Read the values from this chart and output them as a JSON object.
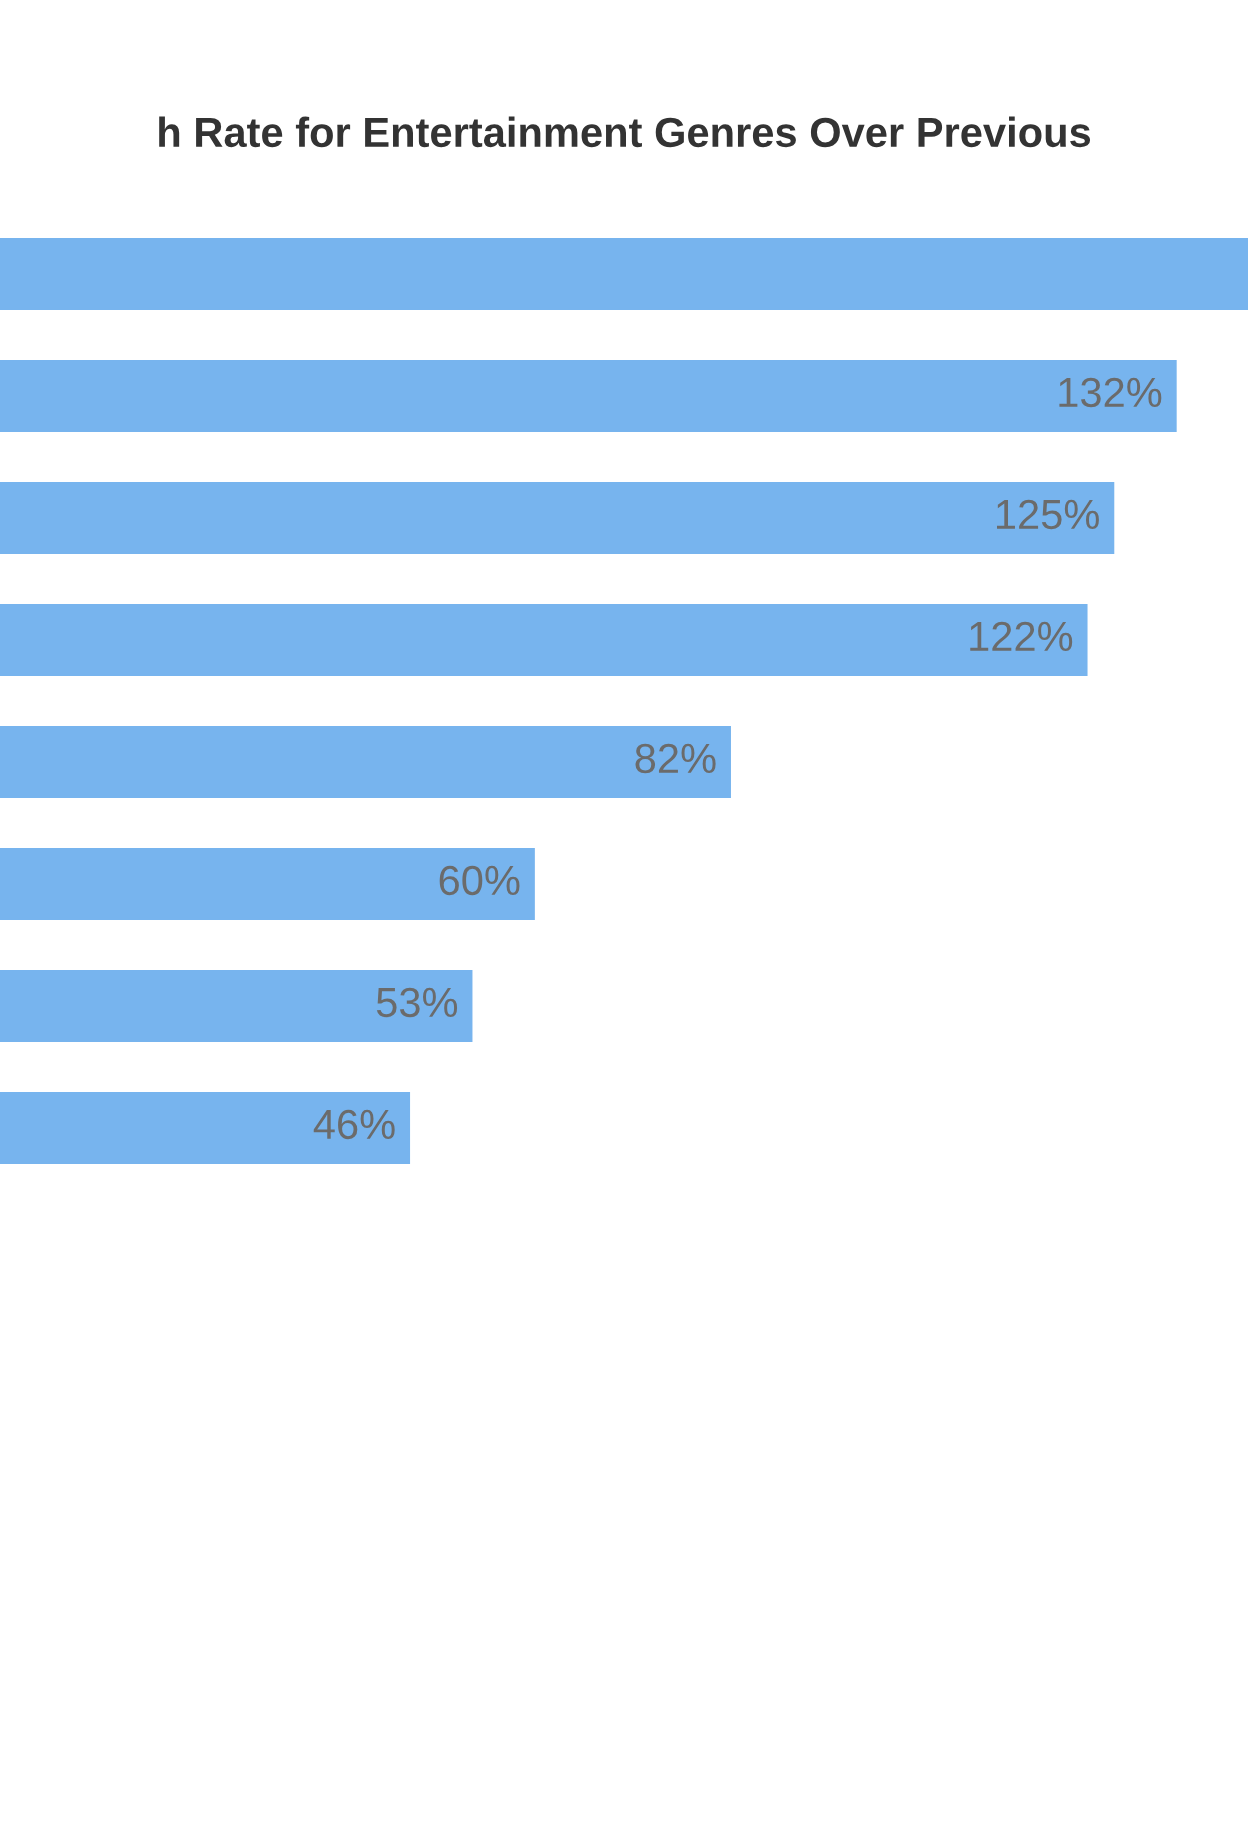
{
  "chart_data": {
    "type": "bar",
    "orientation": "horizontal",
    "title": "h Rate for Entertainment Genres Over Previous",
    "categories": [
      null,
      null,
      null,
      null,
      null,
      null,
      null,
      null
    ],
    "values": [
      140,
      132,
      125,
      122,
      82,
      60,
      53,
      46
    ],
    "value_labels": [
      null,
      "132%",
      "125%",
      "122%",
      "82%",
      "60%",
      "53%",
      "46%"
    ],
    "color": "#77b4ee"
  }
}
